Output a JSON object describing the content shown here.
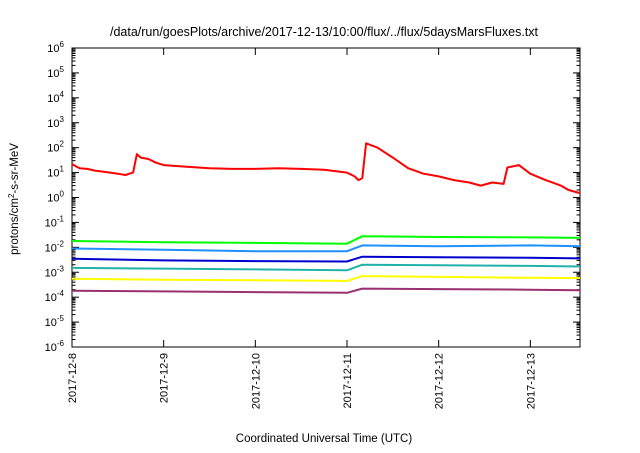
{
  "chart_data": {
    "type": "line",
    "title": "/data/run/goesPlots/archive/2017-12-13/10:00/flux/../flux/5daysMarsFluxes.txt",
    "xlabel": "Coordinated Universal Time (UTC)",
    "ylabel": "protons/cm2-s-sr-MeV",
    "ylabel_parts": {
      "pre": "protons/cm",
      "sup": "2",
      "post": "-s-sr-MeV"
    },
    "yscale": "log",
    "ylim": [
      1e-06,
      1000000.0
    ],
    "xlim": [
      "2017-12-08T00:00",
      "2017-12-13T13:00"
    ],
    "grid": false,
    "legend": "none",
    "y_ticks": [
      {
        "value": 1e-06,
        "base": "10",
        "exp": "-6"
      },
      {
        "value": 1e-05,
        "base": "10",
        "exp": "-5"
      },
      {
        "value": 0.0001,
        "base": "10",
        "exp": "-4"
      },
      {
        "value": 0.001,
        "base": "10",
        "exp": "-3"
      },
      {
        "value": 0.01,
        "base": "10",
        "exp": "-2"
      },
      {
        "value": 0.1,
        "base": "10",
        "exp": "-1"
      },
      {
        "value": 1,
        "base": "10",
        "exp": "0"
      },
      {
        "value": 10,
        "base": "10",
        "exp": "1"
      },
      {
        "value": 100,
        "base": "10",
        "exp": "2"
      },
      {
        "value": 1000,
        "base": "10",
        "exp": "3"
      },
      {
        "value": 10000,
        "base": "10",
        "exp": "4"
      },
      {
        "value": 100000,
        "base": "10",
        "exp": "5"
      },
      {
        "value": 1000000,
        "base": "10",
        "exp": "6"
      }
    ],
    "x_ticks": [
      {
        "value": "2017-12-08T00:00",
        "label": "2017-12-8"
      },
      {
        "value": "2017-12-09T00:00",
        "label": "2017-12-9"
      },
      {
        "value": "2017-12-10T00:00",
        "label": "2017-12-10"
      },
      {
        "value": "2017-12-11T00:00",
        "label": "2017-12-11"
      },
      {
        "value": "2017-12-12T00:00",
        "label": "2017-12-12"
      },
      {
        "value": "2017-12-13T00:00",
        "label": "2017-12-13"
      }
    ],
    "series": [
      {
        "color": "#ff0000",
        "x": [
          "2017-12-08T00:00",
          "2017-12-08T01:00",
          "2017-12-08T02:00",
          "2017-12-08T04:00",
          "2017-12-08T06:00",
          "2017-12-08T08:00",
          "2017-12-08T10:00",
          "2017-12-08T12:00",
          "2017-12-08T14:00",
          "2017-12-08T15:00",
          "2017-12-08T16:00",
          "2017-12-08T17:00",
          "2017-12-08T18:00",
          "2017-12-08T20:00",
          "2017-12-08T22:00",
          "2017-12-09T00:00",
          "2017-12-09T06:00",
          "2017-12-09T12:00",
          "2017-12-09T18:00",
          "2017-12-10T00:00",
          "2017-12-10T06:00",
          "2017-12-10T12:00",
          "2017-12-10T18:00",
          "2017-12-11T00:00",
          "2017-12-11T02:00",
          "2017-12-11T03:00",
          "2017-12-11T04:00",
          "2017-12-11T05:00",
          "2017-12-11T08:00",
          "2017-12-11T12:00",
          "2017-12-11T16:00",
          "2017-12-11T20:00",
          "2017-12-12T00:00",
          "2017-12-12T04:00",
          "2017-12-12T08:00",
          "2017-12-12T11:00",
          "2017-12-12T14:00",
          "2017-12-12T17:00",
          "2017-12-12T18:00",
          "2017-12-12T21:00",
          "2017-12-13T00:00",
          "2017-12-13T04:00",
          "2017-12-13T08:00",
          "2017-12-13T10:00",
          "2017-12-13T13:00"
        ],
        "values": [
          22,
          18,
          15,
          14,
          12,
          11,
          10,
          9,
          8,
          9,
          10,
          55,
          40,
          35,
          25,
          20,
          17,
          15,
          14,
          14,
          15,
          14,
          13,
          10,
          7,
          5,
          6,
          150,
          100,
          40,
          15,
          9,
          7,
          5,
          4,
          3,
          4,
          3.5,
          16,
          20,
          9,
          5,
          3,
          2,
          1.5
        ]
      },
      {
        "color": "#00ff00",
        "x": [
          "2017-12-08T00:00",
          "2017-12-09T00:00",
          "2017-12-10T00:00",
          "2017-12-11T00:00",
          "2017-12-11T04:00",
          "2017-12-12T00:00",
          "2017-12-13T00:00",
          "2017-12-13T13:00"
        ],
        "values": [
          0.018,
          0.016,
          0.015,
          0.014,
          0.028,
          0.026,
          0.025,
          0.024
        ]
      },
      {
        "color": "#1e90ff",
        "x": [
          "2017-12-08T00:00",
          "2017-12-09T00:00",
          "2017-12-10T00:00",
          "2017-12-11T00:00",
          "2017-12-11T04:00",
          "2017-12-12T00:00",
          "2017-12-13T00:00",
          "2017-12-13T13:00"
        ],
        "values": [
          0.009,
          0.008,
          0.007,
          0.007,
          0.012,
          0.011,
          0.012,
          0.011
        ]
      },
      {
        "color": "#0000cd",
        "x": [
          "2017-12-08T00:00",
          "2017-12-09T00:00",
          "2017-12-10T00:00",
          "2017-12-11T00:00",
          "2017-12-11T04:00",
          "2017-12-12T00:00",
          "2017-12-13T00:00",
          "2017-12-13T13:00"
        ],
        "values": [
          0.0035,
          0.003,
          0.0028,
          0.0027,
          0.0042,
          0.004,
          0.0038,
          0.0036
        ]
      },
      {
        "color": "#20b2aa",
        "x": [
          "2017-12-08T00:00",
          "2017-12-09T00:00",
          "2017-12-10T00:00",
          "2017-12-11T00:00",
          "2017-12-11T04:00",
          "2017-12-12T00:00",
          "2017-12-13T00:00",
          "2017-12-13T13:00"
        ],
        "values": [
          0.0015,
          0.0014,
          0.0013,
          0.0012,
          0.002,
          0.0019,
          0.0018,
          0.0017
        ]
      },
      {
        "color": "#ffff00",
        "x": [
          "2017-12-08T00:00",
          "2017-12-09T00:00",
          "2017-12-10T00:00",
          "2017-12-11T00:00",
          "2017-12-11T04:00",
          "2017-12-12T00:00",
          "2017-12-13T00:00",
          "2017-12-13T13:00"
        ],
        "values": [
          0.00055,
          0.0005,
          0.00048,
          0.00045,
          0.0007,
          0.00065,
          0.0006,
          0.00058
        ]
      },
      {
        "color": "#9b3070",
        "x": [
          "2017-12-08T00:00",
          "2017-12-09T00:00",
          "2017-12-10T00:00",
          "2017-12-11T00:00",
          "2017-12-11T04:00",
          "2017-12-12T00:00",
          "2017-12-13T00:00",
          "2017-12-13T13:00"
        ],
        "values": [
          0.00018,
          0.00017,
          0.00016,
          0.00015,
          0.00022,
          0.00021,
          0.0002,
          0.00019
        ]
      }
    ]
  }
}
